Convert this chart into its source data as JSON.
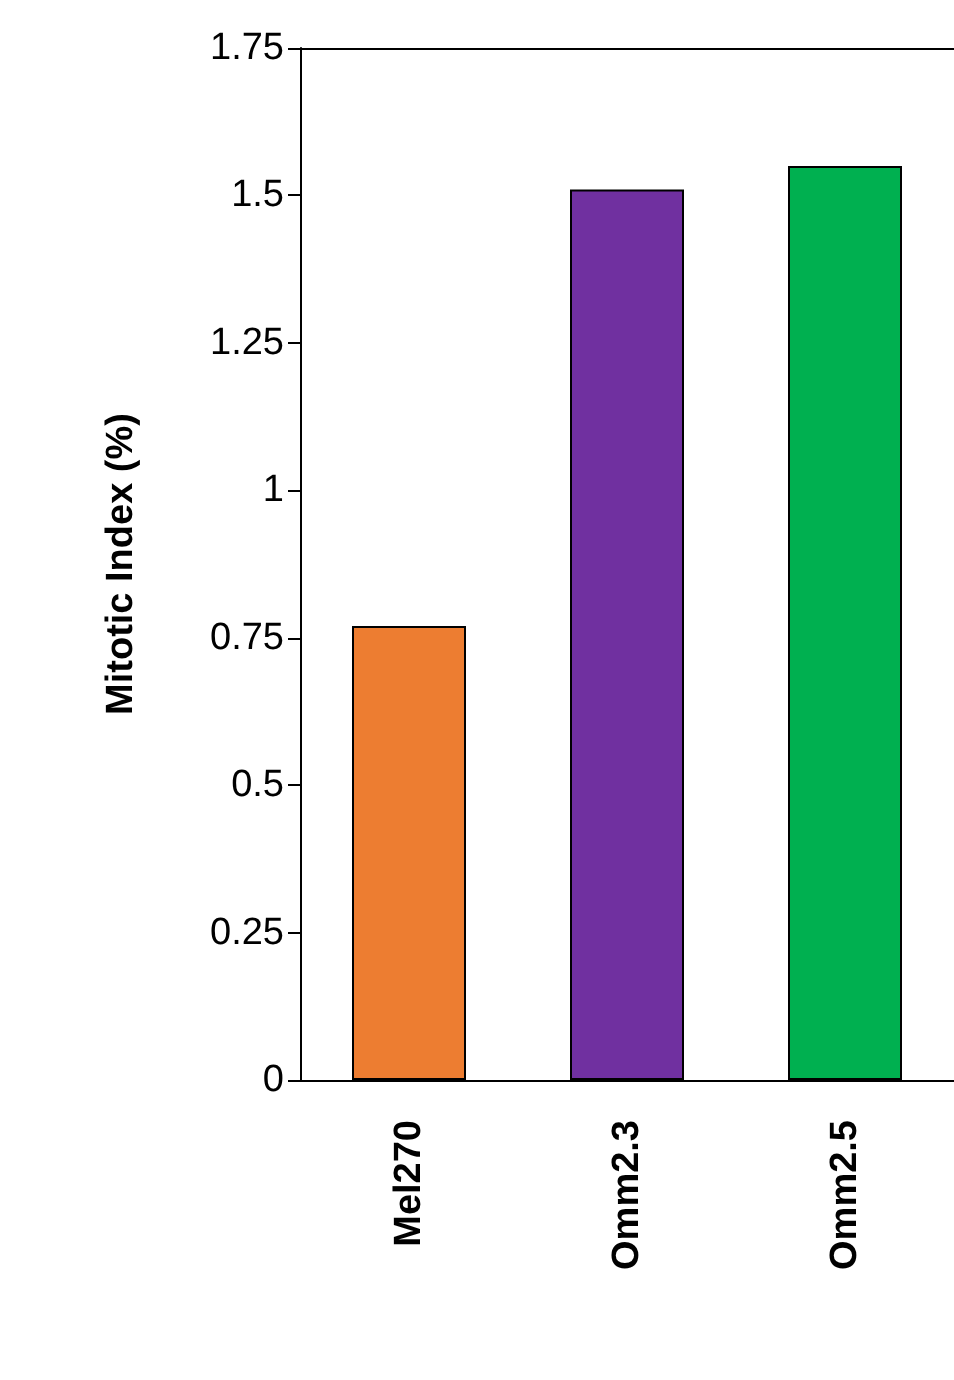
{
  "chart_data": {
    "type": "bar",
    "ylabel": "Mitotic Index (%)",
    "categories": [
      "Mel270",
      "Omm2.3",
      "Omm2.5"
    ],
    "values": [
      0.77,
      1.51,
      1.55
    ],
    "colors": [
      "#ed7d31",
      "#7030a0",
      "#00b050"
    ],
    "ylim": [
      0,
      1.75
    ],
    "yticks": [
      0,
      0.25,
      0.5,
      0.75,
      1,
      1.25,
      1.5,
      1.75
    ],
    "grid": false
  }
}
